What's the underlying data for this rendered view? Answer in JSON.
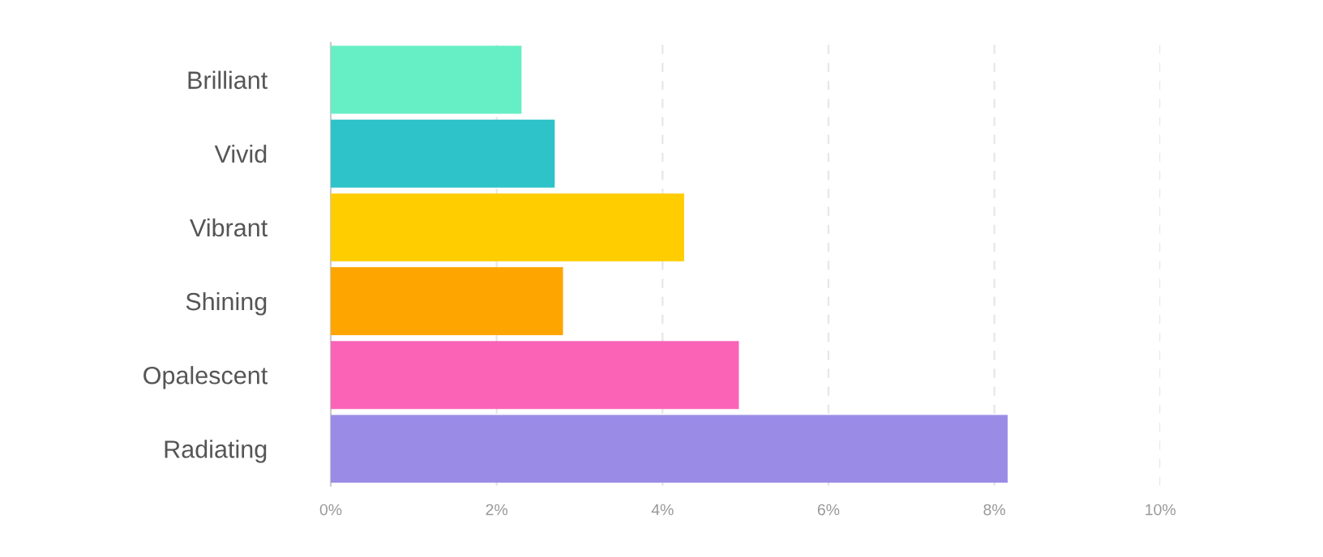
{
  "chart_data": {
    "type": "bar",
    "orientation": "horizontal",
    "categories": [
      "Brilliant",
      "Vivid",
      "Vibrant",
      "Shining",
      "Opalescent",
      "Radiating"
    ],
    "values": [
      2.3,
      2.7,
      4.26,
      2.8,
      4.92,
      8.16
    ],
    "colors": [
      "#66efc5",
      "#2ec3c9",
      "#ffcd00",
      "#ffa500",
      "#fb63b7",
      "#9a8ce6"
    ],
    "xlim": [
      0,
      10
    ],
    "xticks": [
      {
        "value": 0,
        "label": "0%"
      },
      {
        "value": 2,
        "label": "2%"
      },
      {
        "value": 4,
        "label": "4%"
      },
      {
        "value": 6,
        "label": "6%"
      },
      {
        "value": 8,
        "label": "8%"
      },
      {
        "value": 10,
        "label": "10%"
      }
    ],
    "grid": "x"
  }
}
